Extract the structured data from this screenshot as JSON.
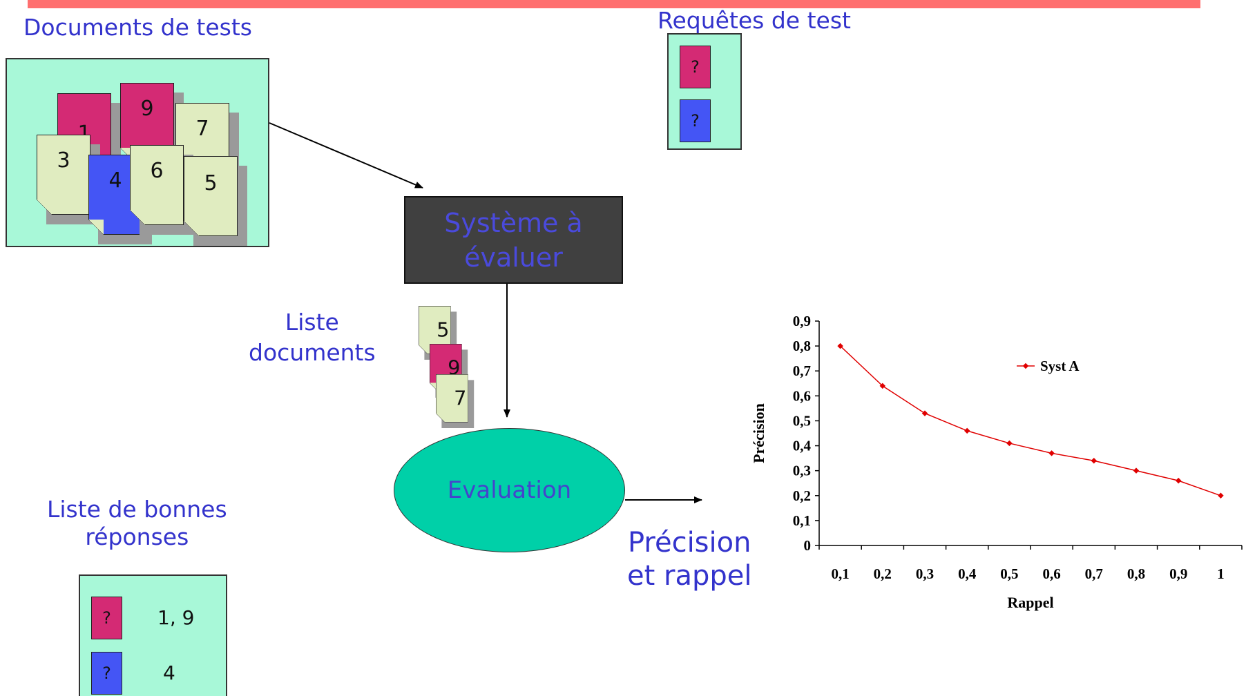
{
  "labels": {
    "documents_tests": "Documents de tests",
    "requetes_test": "Requêtes de test",
    "liste_documents": "Liste\ndocuments",
    "liste_bonnes_reponses": "Liste de bonnes\nréponses",
    "precision_rappel": "Précision\net rappel"
  },
  "test_documents": [
    "1",
    "9",
    "7",
    "3",
    "4",
    "6",
    "5"
  ],
  "queries": [
    "?",
    "?"
  ],
  "system": {
    "label": "Système à\névaluer"
  },
  "result_list": [
    "5",
    "9",
    "7"
  ],
  "evaluation": {
    "label": "Evaluation"
  },
  "good_answers": [
    {
      "query": "?",
      "docs": "1, 9"
    },
    {
      "query": "?",
      "docs": "4"
    }
  ],
  "colors": {
    "pink": "#d42a74",
    "blue": "#4455f5",
    "cream": "#e0ecc0",
    "panel": "#a8f8d8",
    "eval": "#00d0a8",
    "series": "#e00000"
  },
  "chart_data": {
    "type": "line",
    "xlabel": "Rappel",
    "ylabel": "Précision",
    "categories": [
      "0,1",
      "0,2",
      "0,3",
      "0,4",
      "0,5",
      "0,6",
      "0,7",
      "0,8",
      "0,9",
      "1"
    ],
    "y_ticks": [
      "0",
      "0,1",
      "0,2",
      "0,3",
      "0,4",
      "0,5",
      "0,6",
      "0,7",
      "0,8",
      "0,9"
    ],
    "ylim": [
      0,
      0.9
    ],
    "series": [
      {
        "name": "Syst A",
        "values": [
          0.8,
          0.64,
          0.53,
          0.46,
          0.41,
          0.37,
          0.34,
          0.3,
          0.26,
          0.2
        ]
      }
    ],
    "legend": "top-right",
    "grid": false
  }
}
